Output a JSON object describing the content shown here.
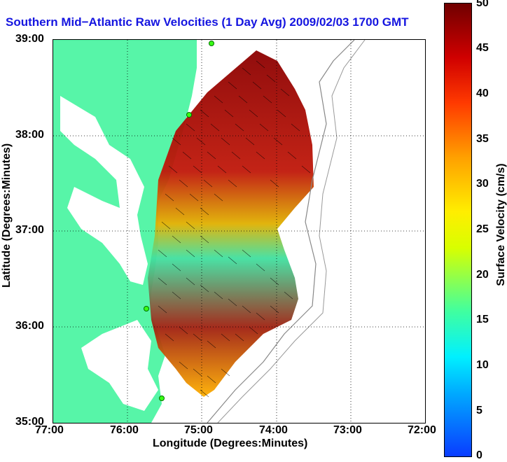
{
  "title": "Southern Mid−Atlantic Raw Velocities (1 Day Avg) 2009/02/03 1700 GMT",
  "axes": {
    "x_title": "Longitude (Degrees:Minutes)",
    "y_title": "Latitude (Degrees:Minutes)",
    "x_ticks": [
      "77:00",
      "76:00",
      "75:00",
      "74:00",
      "73:00",
      "72:00"
    ],
    "y_ticks": [
      "39:00",
      "38:00",
      "37:00",
      "36:00",
      "35:00"
    ]
  },
  "colorbar": {
    "title": "Surface Velocity (cm/s)",
    "ticks": [
      "50",
      "45",
      "40",
      "35",
      "30",
      "25",
      "20",
      "15",
      "10",
      "5",
      "0"
    ],
    "min": 0,
    "max": 50
  },
  "colors": {
    "land": "#57f5a8",
    "title": "#1515e0",
    "grid": "#000000"
  },
  "icons": [
    "station-marker-icon"
  ]
}
